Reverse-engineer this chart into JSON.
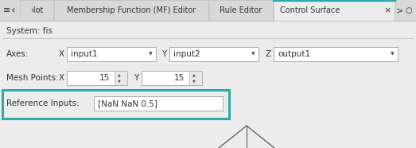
{
  "bg_color": "#ececec",
  "white": "#ffffff",
  "tab_bar_bg": "#d8d8d8",
  "tab_active_bg": "#ececec",
  "tab_active_text": "Control Surface",
  "tab_active_border_top": "#2eaaad",
  "tab_inactive_texts": [
    "‹lot",
    "Membership Function (MF) Editor",
    "Rule Editor"
  ],
  "system_label": "System: fis",
  "axes_label": "Axes:",
  "axes_x_label": "X",
  "axes_y_label": "Y",
  "axes_z_label": "Z",
  "dropdown_x": "input1",
  "dropdown_y": "input2",
  "dropdown_z": "output1",
  "mesh_label": "Mesh Points:",
  "mesh_x_label": "X",
  "mesh_y_label": "Y",
  "mesh_x_val": "15",
  "mesh_y_val": "15",
  "ref_label": "Reference Inputs:",
  "ref_value": "[NaN NaN 0.5]",
  "ref_border_color": "#2eaaad",
  "separator_color": "#c0c0c0",
  "text_color": "#333333",
  "dark_blue_tab": "#1e3a6e",
  "font_size": 7.5,
  "tab_font_size": 7.0
}
